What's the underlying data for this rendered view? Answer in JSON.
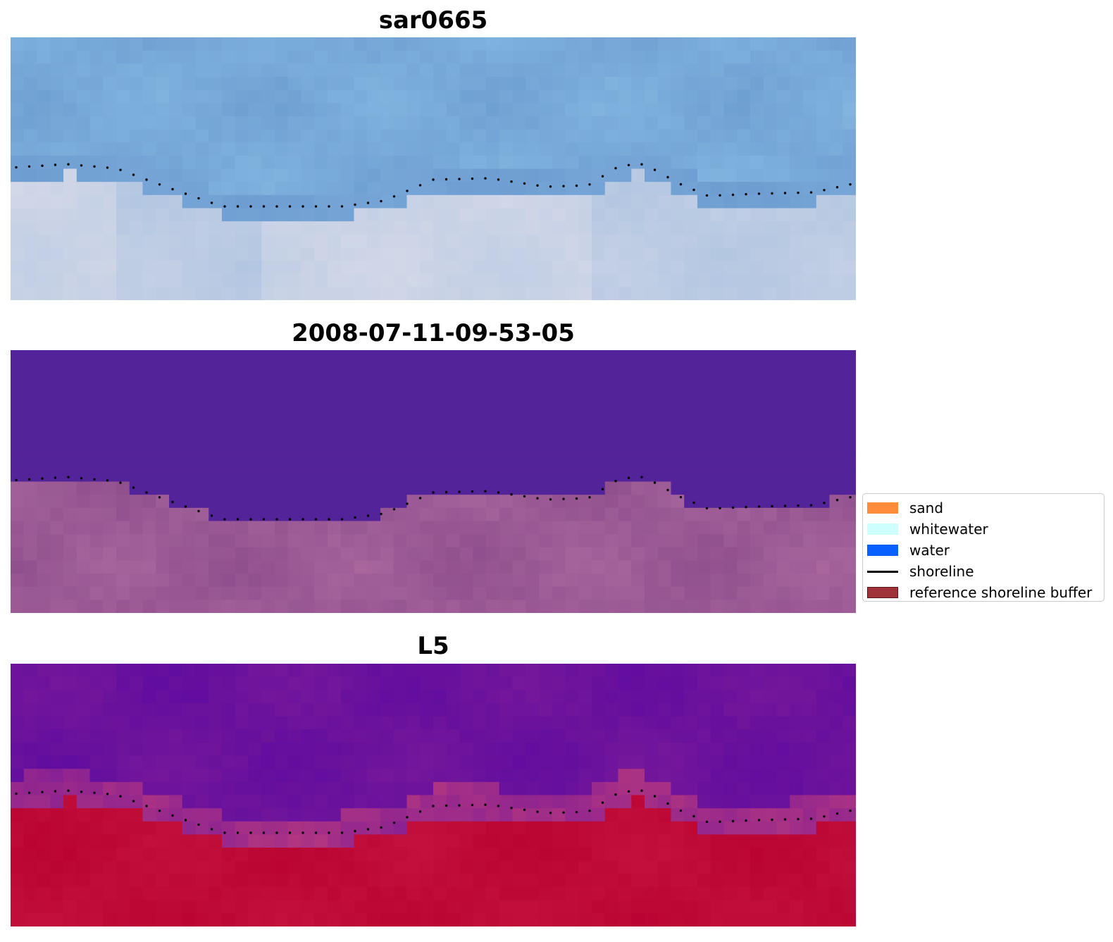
{
  "panels": [
    {
      "title": "sar0665",
      "palette": [
        "#d8dbe9",
        "#a8c0df",
        "#7aa8da",
        "#6b9bcf",
        "#85b8e2"
      ],
      "pattern": "sar"
    },
    {
      "title": "2008-07-11-09-53-05",
      "palette": [
        "#532399",
        "#8a4a8a",
        "#a45d96",
        "#b06ea2"
      ],
      "pattern": "classified"
    },
    {
      "title": "L5",
      "palette": [
        "#5c0aa0",
        "#7a1a99",
        "#c03d7a",
        "#c4143f",
        "#b8002f"
      ],
      "pattern": "index"
    }
  ],
  "legend": {
    "items": [
      {
        "label": "sand",
        "color": "#ff8c3a",
        "kind": "patch"
      },
      {
        "label": "whitewater",
        "color": "#ccfffe",
        "kind": "patch"
      },
      {
        "label": "water",
        "color": "#0a5fff",
        "kind": "patch"
      },
      {
        "label": "shoreline",
        "color": "#000000",
        "kind": "line"
      },
      {
        "label": "reference shoreline buffer",
        "color": "#a0333a",
        "kind": "outlined"
      }
    ]
  }
}
